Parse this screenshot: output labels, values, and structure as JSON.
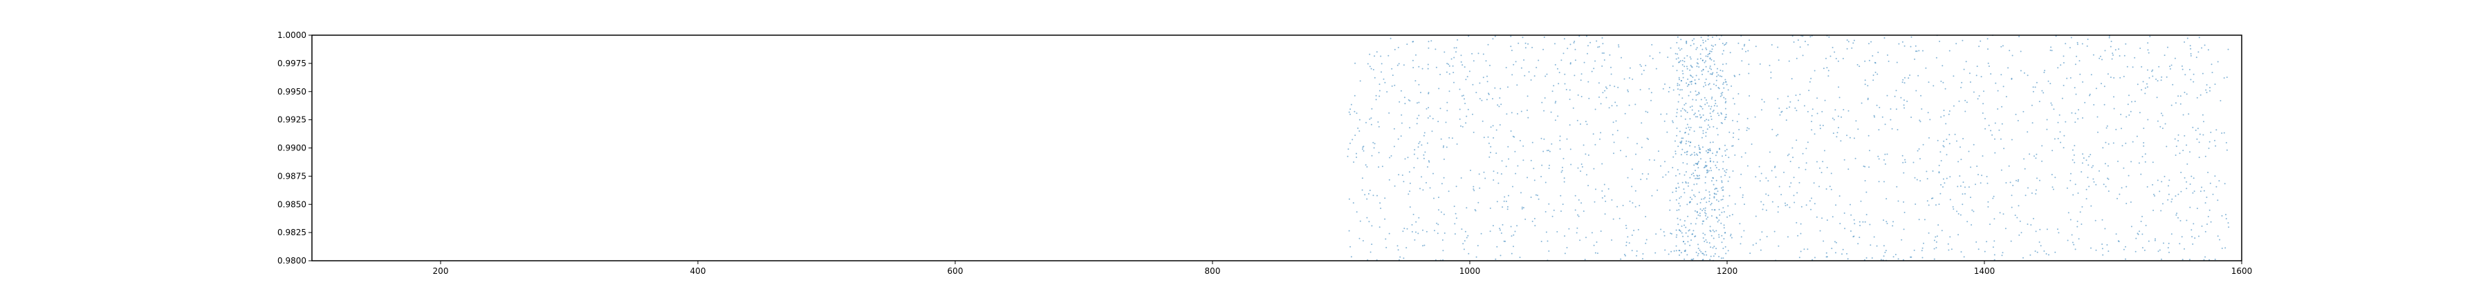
{
  "chart_data": {
    "type": "scatter",
    "title": "",
    "xlabel": "",
    "ylabel": "",
    "xlim": [
      100,
      1600
    ],
    "ylim": [
      0.98,
      1.0
    ],
    "grid": false,
    "x_ticks": [
      200,
      400,
      600,
      800,
      1000,
      1200,
      1400,
      1600
    ],
    "x_tick_labels": [
      "200",
      "400",
      "600",
      "800",
      "1000",
      "1200",
      "1400",
      "1600"
    ],
    "y_ticks": [
      0.98,
      0.9825,
      0.985,
      0.9875,
      0.99,
      0.9925,
      0.995,
      0.9975,
      1.0
    ],
    "y_tick_labels": [
      "0.9800",
      "0.9825",
      "0.9850",
      "0.9875",
      "0.9900",
      "0.9925",
      "0.9950",
      "0.9975",
      "1.0000"
    ],
    "series": [
      {
        "color": "#1f77b4",
        "point_count": 2400,
        "x_range": [
          905,
          1590
        ],
        "y_range": [
          0.98,
          1.0
        ],
        "dense_band_x": [
          1160,
          1200
        ]
      }
    ]
  }
}
